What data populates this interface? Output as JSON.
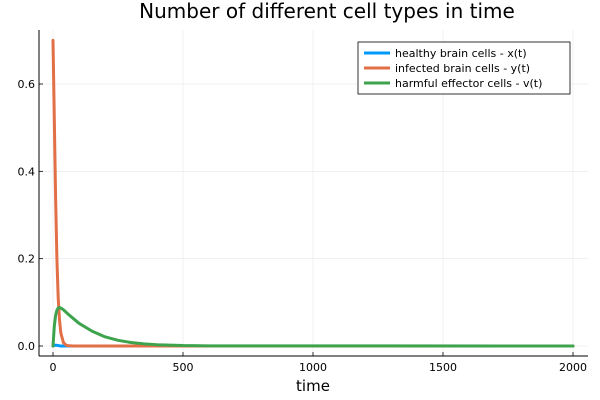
{
  "chart_data": {
    "type": "line",
    "title": "Number of different cell types in time",
    "xlabel": "time",
    "ylabel": "",
    "xlim": [
      0,
      2000
    ],
    "ylim": [
      0,
      0.7
    ],
    "xticks": [
      0,
      500,
      1000,
      1500,
      2000
    ],
    "xtick_labels": [
      "0",
      "500",
      "1000",
      "1500",
      "2000"
    ],
    "yticks": [
      0,
      0.2,
      0.4,
      0.6
    ],
    "ytick_labels": [
      "0.0",
      "0.2",
      "0.4",
      "0.6"
    ],
    "grid": true,
    "legend_position": "top-right",
    "series": [
      {
        "name": "healthy brain cells - x(t)",
        "color": "#009AFA",
        "x": [
          0,
          10,
          20,
          30,
          40,
          2000
        ],
        "y": [
          0,
          0.002,
          0.001,
          0.0,
          0.0,
          0.0
        ]
      },
      {
        "name": "infected brain cells - y(t)",
        "color": "#E26F46",
        "x": [
          0,
          5,
          10,
          15,
          20,
          25,
          30,
          40,
          50,
          60,
          80,
          2000
        ],
        "y": [
          0.7,
          0.52,
          0.34,
          0.2,
          0.11,
          0.06,
          0.03,
          0.008,
          0.002,
          0.0005,
          0.0,
          0.0
        ]
      },
      {
        "name": "harmful effector cells - v(t)",
        "color": "#3DA44D",
        "x": [
          0,
          5,
          10,
          15,
          20,
          25,
          30,
          40,
          60,
          80,
          100,
          150,
          200,
          250,
          300,
          350,
          400,
          500,
          600,
          2000
        ],
        "y": [
          0,
          0.045,
          0.07,
          0.082,
          0.087,
          0.088,
          0.087,
          0.083,
          0.072,
          0.062,
          0.052,
          0.034,
          0.021,
          0.013,
          0.008,
          0.005,
          0.003,
          0.001,
          0.0004,
          0.0
        ]
      }
    ]
  }
}
